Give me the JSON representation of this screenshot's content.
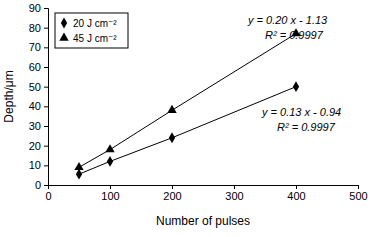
{
  "chart_data": {
    "type": "line",
    "x_label": "Number of pulses",
    "y_label": "Depth/μm",
    "x": [
      50,
      100,
      200,
      400
    ],
    "series": [
      {
        "name": "20 J cm⁻²",
        "color": "#000000",
        "marker": "diamond",
        "values": [
          5.5,
          12,
          24,
          50
        ]
      },
      {
        "name": "45 J cm⁻²",
        "color": "#000000",
        "marker": "triangle",
        "values": [
          9,
          18,
          38,
          77
        ]
      }
    ],
    "annotations": [
      "y = 0.20 x - 1.13",
      "R² = 0.9997",
      "y = 0.13 x - 0.94",
      "R² = 0.9997"
    ],
    "xlim": [
      0,
      500
    ],
    "xticks": [
      0,
      100,
      200,
      300,
      400,
      500
    ],
    "ylim": [
      0,
      90
    ],
    "yticks": [
      0,
      10,
      20,
      30,
      40,
      50,
      60,
      70,
      80,
      90
    ],
    "grid": false,
    "legend": "upper left"
  }
}
